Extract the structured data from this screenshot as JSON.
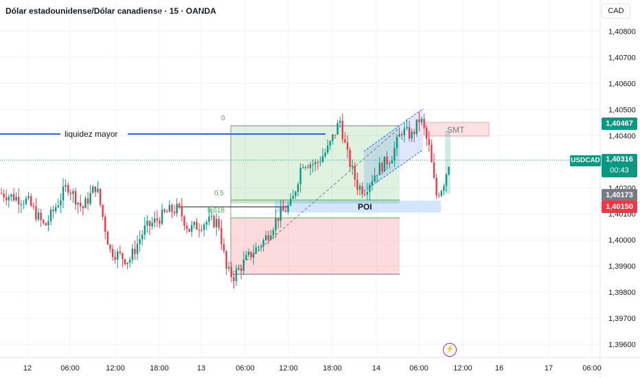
{
  "header": {
    "title": "Dólar estadounidense/Dólar canadiense · 15 · OANDA",
    "currency": "CAD"
  },
  "price_axis": {
    "ticks": [
      "1,40800",
      "1,40700",
      "1,40600",
      "1,40500",
      "1,40400",
      "1,40200",
      "1,40100",
      "1,40000",
      "1,39900",
      "1,39800",
      "1,39700",
      "1,39600"
    ]
  },
  "time_axis": {
    "ticks": [
      "12",
      "06:00",
      "12:00",
      "18:00",
      "13",
      "06:00",
      "12:00",
      "18:00",
      "14",
      "06:00",
      "12:00",
      "16",
      "17",
      "06:00"
    ]
  },
  "drawings": {
    "liquidity_label": "liquidez mayor",
    "fib_0": "0",
    "fib_05": "0,5",
    "fib_0618": "0,618",
    "poi_label": "POI",
    "smt_label": "SMT"
  },
  "price_labels": {
    "smt_level": "1,40467",
    "symbol": "USDCAD",
    "current": "1,40316",
    "countdown": "00:43",
    "grey_level": "1,40173",
    "red_level": "1,40150"
  },
  "colors": {
    "up": "#089981",
    "down": "#f23645",
    "liquidity_line": "#2962ff",
    "fib_green": "#4caf50",
    "grey_tag": "#787b86",
    "flash": "#9c27b0"
  },
  "icons": {
    "flash": "lightning-bolt-icon"
  },
  "chart_data": {
    "type": "candlestick",
    "symbol": "USDCAD",
    "interval": "15",
    "y_range": [
      1.3955,
      1.4092
    ],
    "price_ticks": [
      1.408,
      1.407,
      1.406,
      1.405,
      1.404,
      1.402,
      1.401,
      1.4,
      1.399,
      1.398,
      1.397,
      1.396
    ],
    "anchors": [
      [
        0,
        1.4018
      ],
      [
        40,
        1.4015
      ],
      [
        65,
        1.4005
      ],
      [
        98,
        1.4021
      ],
      [
        120,
        1.4012
      ],
      [
        140,
        1.4021
      ],
      [
        160,
        1.3996
      ],
      [
        188,
        1.3992
      ],
      [
        210,
        1.4004
      ],
      [
        245,
        1.4011
      ],
      [
        260,
        1.4012
      ],
      [
        275,
        1.4004
      ],
      [
        300,
        1.4007
      ],
      [
        318,
        1.4007
      ],
      [
        330,
        1.3988
      ],
      [
        340,
        1.3986
      ],
      [
        360,
        1.3993
      ],
      [
        385,
        1.4
      ],
      [
        405,
        1.4009
      ],
      [
        425,
        1.4014
      ],
      [
        440,
        1.403
      ],
      [
        460,
        1.4029
      ],
      [
        478,
        1.4035
      ],
      [
        495,
        1.4046
      ],
      [
        505,
        1.4033
      ],
      [
        520,
        1.4021
      ],
      [
        530,
        1.4019
      ],
      [
        550,
        1.4027
      ],
      [
        570,
        1.4032
      ],
      [
        585,
        1.4042
      ],
      [
        600,
        1.404
      ],
      [
        612,
        1.4047
      ],
      [
        625,
        1.4035
      ],
      [
        635,
        1.4017
      ],
      [
        645,
        1.4021
      ],
      [
        655,
        1.4031
      ]
    ],
    "current_price": 1.40316,
    "levels": {
      "smt": 1.40467,
      "current": 1.40316,
      "grey": 1.40173,
      "red": 1.4015
    }
  }
}
